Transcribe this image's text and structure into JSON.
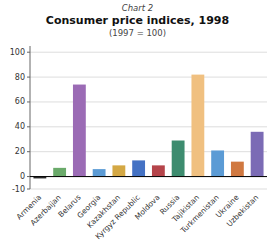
{
  "chart_data": {
    "type": "bar",
    "title": "Consumer price indices, 1998",
    "subtitle": "(1997 = 100)",
    "annotations": [
      "Chart 2"
    ],
    "categories": [
      "Armenia",
      "Azerbaijan",
      "Belarus",
      "Georgia",
      "Kazakhstan",
      "Kyrgyz Republic",
      "Moldova",
      "Russia",
      "Tajikistan",
      "Turkmenistan",
      "Ukraine",
      "Uzbekistan"
    ],
    "values": [
      -1.5,
      7,
      74,
      6,
      9,
      13,
      9,
      29,
      82,
      21,
      12,
      36
    ],
    "colors": [
      "#2a2a2a",
      "#6aaa6a",
      "#9b6bb5",
      "#5b9bd5",
      "#d4a844",
      "#4472c4",
      "#b5444a",
      "#3d8c6f",
      "#f0c080",
      "#5b9bd5",
      "#d07840",
      "#7b6bb5"
    ],
    "ylim": [
      -10,
      105
    ],
    "yticks": [
      -10,
      0,
      20,
      40,
      60,
      80,
      100
    ],
    "grid": true
  }
}
